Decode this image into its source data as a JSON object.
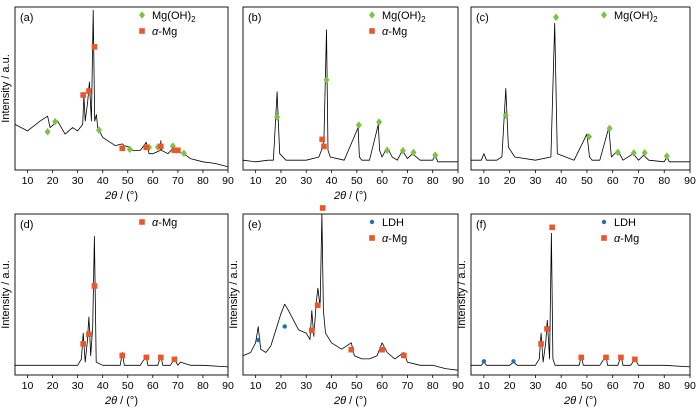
{
  "chart_data": [
    {
      "type": "line",
      "panel_label": "(a)",
      "xlabel_symbol": "2θ",
      "xlabel_unit": " / (°)",
      "ylabel": "Intensity / a.u.",
      "xlim": [
        5,
        90
      ],
      "xticks": [
        10,
        20,
        30,
        40,
        50,
        60,
        70,
        80,
        90
      ],
      "legend": [
        {
          "text": "Mg(OH)",
          "sub": "2",
          "marker": "diamond",
          "color": "#7dc242"
        },
        {
          "text": "α-Mg",
          "sub": "",
          "marker": "square",
          "color": "#e8582a"
        }
      ],
      "series": [
        {
          "x": [
            5,
            10,
            15,
            18,
            19,
            22,
            25,
            28,
            30,
            32,
            32.5,
            33,
            34,
            34.7,
            35.5,
            36.2,
            36.8,
            37.5,
            38,
            40,
            45,
            47.8,
            48.5,
            50.8,
            52,
            55,
            57.4,
            58.5,
            60,
            63,
            63.2,
            63.5,
            66,
            68.6,
            70,
            72.4,
            75,
            80,
            85,
            90
          ],
          "y": [
            0.28,
            0.24,
            0.3,
            0.33,
            0.26,
            0.3,
            0.22,
            0.26,
            0.24,
            0.28,
            0.46,
            0.3,
            0.42,
            0.54,
            0.3,
            0.98,
            0.3,
            0.34,
            0.26,
            0.2,
            0.15,
            0.16,
            0.15,
            0.14,
            0.12,
            0.12,
            0.17,
            0.1,
            0.1,
            0.12,
            0.18,
            0.12,
            0.1,
            0.14,
            0.11,
            0.1,
            0.07,
            0.05,
            0.04,
            0.02
          ]
        }
      ],
      "peaks": {
        "Mg(OH)2": [
          18,
          21,
          38.5,
          50.8,
          58.5,
          62,
          68,
          72.4
        ],
        "α-Mg": [
          32.2,
          34.5,
          36.7,
          47.8,
          57.4,
          63.2,
          68.6,
          70
        ]
      }
    },
    {
      "type": "line",
      "panel_label": "(b)",
      "xlabel_symbol": "2θ",
      "xlabel_unit": " / (°)",
      "ylabel": "",
      "xlim": [
        5,
        90
      ],
      "xticks": [
        10,
        20,
        30,
        40,
        50,
        60,
        70,
        80,
        90
      ],
      "legend": [
        {
          "text": "Mg(OH)",
          "sub": "2",
          "marker": "diamond",
          "color": "#7dc242"
        },
        {
          "text": "α-Mg",
          "sub": "",
          "marker": "square",
          "color": "#e8582a"
        }
      ],
      "series": [
        {
          "x": [
            5,
            10,
            15,
            17,
            18.5,
            19.5,
            22,
            30,
            35,
            36,
            37,
            38,
            38.6,
            39.5,
            45,
            50.5,
            51,
            52,
            55,
            58.5,
            59,
            60,
            62,
            64,
            66,
            68,
            70,
            72,
            75,
            80,
            81,
            82,
            90
          ],
          "y": [
            0.06,
            0.05,
            0.06,
            0.06,
            0.48,
            0.1,
            0.06,
            0.06,
            0.08,
            0.12,
            0.18,
            0.86,
            0.12,
            0.08,
            0.06,
            0.26,
            0.08,
            0.06,
            0.06,
            0.28,
            0.12,
            0.08,
            0.14,
            0.08,
            0.06,
            0.12,
            0.07,
            0.1,
            0.06,
            0.06,
            0.09,
            0.05,
            0.05
          ]
        }
      ],
      "peaks": {
        "Mg(OH)2": [
          18.5,
          38,
          50.8,
          58.8,
          62,
          68.2,
          72.4,
          81
        ],
        "α-Mg": [
          36.3,
          37
        ]
      }
    },
    {
      "type": "line",
      "panel_label": "(c)",
      "xlabel_symbol": "",
      "xlabel_unit": "",
      "ylabel": "",
      "xlim": [
        5,
        90
      ],
      "xticks": [
        10,
        20,
        30,
        40,
        50,
        60,
        70,
        80,
        90
      ],
      "legend": [
        {
          "text": "Mg(OH)",
          "sub": "2",
          "marker": "diamond",
          "color": "#7dc242"
        }
      ],
      "series": [
        {
          "x": [
            5,
            9,
            10,
            11,
            15,
            17,
            18.5,
            19.5,
            22,
            30,
            36,
            37.5,
            38.5,
            45,
            50,
            51,
            52,
            55,
            58.5,
            59.5,
            62,
            64,
            68,
            70,
            72,
            74,
            80,
            81,
            82,
            90
          ],
          "y": [
            0.06,
            0.06,
            0.1,
            0.06,
            0.06,
            0.08,
            0.5,
            0.14,
            0.08,
            0.06,
            0.08,
            0.9,
            0.1,
            0.06,
            0.22,
            0.08,
            0.06,
            0.06,
            0.26,
            0.08,
            0.12,
            0.06,
            0.1,
            0.06,
            0.09,
            0.06,
            0.05,
            0.08,
            0.05,
            0.05
          ]
        }
      ],
      "peaks": {
        "Mg(OH)2": [
          18.5,
          38,
          50.8,
          58.8,
          62,
          68.2,
          72.4,
          81
        ]
      }
    },
    {
      "type": "line",
      "panel_label": "(d)",
      "xlabel_symbol": "2θ",
      "xlabel_unit": " / (°)",
      "ylabel": "Intensity / a.u.",
      "xlim": [
        5,
        90
      ],
      "xticks": [
        10,
        20,
        30,
        40,
        50,
        60,
        70,
        80,
        90
      ],
      "legend": [
        {
          "text": "α-Mg",
          "sub": "",
          "marker": "square",
          "color": "#e8582a"
        }
      ],
      "series": [
        {
          "x": [
            5,
            10,
            20,
            30,
            31.5,
            32.2,
            33,
            33.8,
            34.5,
            35.2,
            36,
            36.7,
            37.4,
            40,
            47,
            47.8,
            48.6,
            55,
            57.4,
            58,
            62,
            63.2,
            64,
            67,
            68.6,
            70,
            71,
            75,
            80,
            90
          ],
          "y": [
            0.06,
            0.06,
            0.06,
            0.06,
            0.1,
            0.26,
            0.08,
            0.2,
            0.36,
            0.12,
            0.3,
            0.86,
            0.08,
            0.06,
            0.06,
            0.14,
            0.06,
            0.06,
            0.12,
            0.06,
            0.06,
            0.12,
            0.06,
            0.06,
            0.1,
            0.06,
            0.08,
            0.06,
            0.06,
            0.05
          ]
        }
      ],
      "peaks": {
        "α-Mg": [
          32.2,
          34.5,
          36.7,
          47.8,
          57.4,
          63.2,
          68.6
        ]
      }
    },
    {
      "type": "line",
      "panel_label": "(e)",
      "xlabel_symbol": "2θ",
      "xlabel_unit": " / (°)",
      "ylabel": "Intensity / a.u.",
      "xlim": [
        5,
        90
      ],
      "xticks": [
        10,
        20,
        30,
        40,
        50,
        60,
        70,
        80,
        90
      ],
      "legend": [
        {
          "text": "LDH",
          "sub": "",
          "marker": "circle",
          "color": "#1f6fb4"
        },
        {
          "text": "α-Mg",
          "sub": "",
          "marker": "square",
          "color": "#e8582a"
        }
      ],
      "series": [
        {
          "x": [
            5,
            8,
            10,
            11,
            12,
            14,
            16,
            18,
            20,
            21.5,
            23,
            25,
            27,
            30,
            31.5,
            32.2,
            33,
            34,
            34.6,
            35.5,
            36.2,
            36.8,
            37.6,
            40,
            44,
            47.8,
            49,
            52,
            55,
            58,
            60,
            62,
            65,
            68.6,
            70,
            75,
            80,
            85,
            90
          ],
          "y": [
            0.12,
            0.14,
            0.2,
            0.3,
            0.16,
            0.14,
            0.18,
            0.28,
            0.38,
            0.44,
            0.4,
            0.34,
            0.28,
            0.26,
            0.22,
            0.4,
            0.24,
            0.46,
            0.54,
            0.42,
            1.0,
            0.4,
            0.26,
            0.2,
            0.16,
            0.2,
            0.12,
            0.1,
            0.1,
            0.12,
            0.2,
            0.14,
            0.1,
            0.14,
            0.08,
            0.06,
            0.06,
            0.04,
            0.03
          ]
        }
      ],
      "peaks": {
        "LDH": [
          11,
          21.5
        ],
        "α-Mg": [
          32.2,
          34.5,
          36.5,
          47.8,
          60,
          68.6
        ]
      }
    },
    {
      "type": "line",
      "panel_label": "(f)",
      "xlabel_symbol": "2θ",
      "xlabel_unit": " / (°)",
      "ylabel": "Intensity / a.u.",
      "xlim": [
        5,
        90
      ],
      "xticks": [
        10,
        20,
        30,
        40,
        50,
        60,
        70,
        80,
        90
      ],
      "legend": [
        {
          "text": "LDH",
          "sub": "",
          "marker": "circle",
          "color": "#1f6fb4"
        },
        {
          "text": "α-Mg",
          "sub": "",
          "marker": "square",
          "color": "#e8582a"
        }
      ],
      "series": [
        {
          "x": [
            5,
            9,
            10,
            11,
            15,
            20,
            21.5,
            23,
            30,
            31.5,
            32.2,
            33,
            34,
            34.6,
            35.5,
            36.2,
            36.8,
            37.6,
            40,
            47,
            47.8,
            48.6,
            55,
            57.4,
            58,
            62,
            63.2,
            64,
            67,
            68.6,
            70,
            75,
            80,
            90
          ],
          "y": [
            0.06,
            0.06,
            0.08,
            0.06,
            0.06,
            0.06,
            0.08,
            0.06,
            0.06,
            0.1,
            0.26,
            0.08,
            0.2,
            0.34,
            0.1,
            0.88,
            0.1,
            0.06,
            0.06,
            0.06,
            0.12,
            0.06,
            0.06,
            0.12,
            0.06,
            0.06,
            0.12,
            0.06,
            0.06,
            0.1,
            0.06,
            0.06,
            0.06,
            0.05
          ]
        }
      ],
      "peaks": {
        "LDH": [
          10,
          21.5
        ],
        "α-Mg": [
          32.2,
          34.5,
          36.5,
          47.8,
          57.4,
          63.2,
          68.6
        ]
      }
    }
  ]
}
